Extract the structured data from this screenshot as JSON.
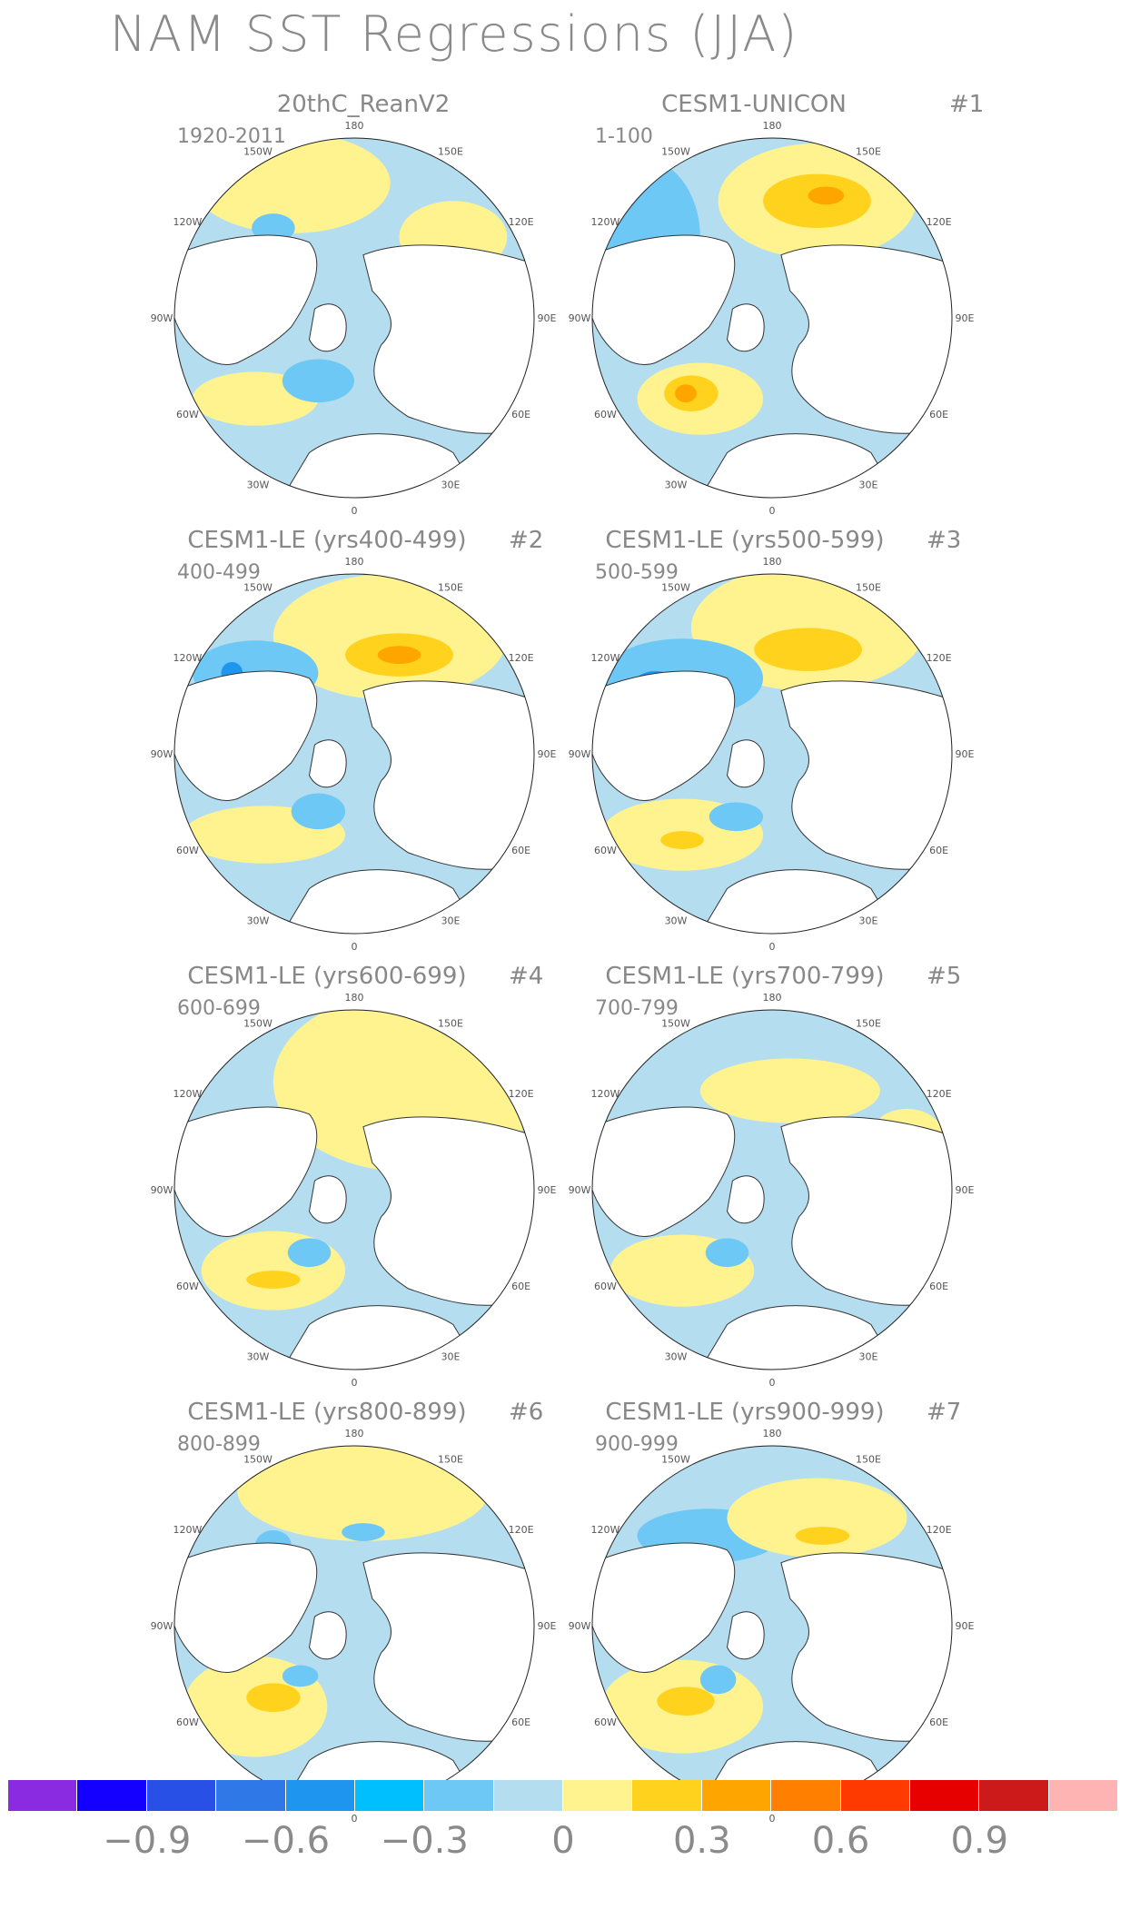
{
  "figure_title": "NAM SST Regressions (JJA)",
  "panels": [
    {
      "title": "20thC_ReanV2",
      "range": "1920-2011",
      "number": ""
    },
    {
      "title": "CESM1-UNICON",
      "range": "1-100",
      "number": "#1"
    },
    {
      "title": "CESM1-LE (yrs400-499)",
      "range": "400-499",
      "number": "#2"
    },
    {
      "title": "CESM1-LE (yrs500-599)",
      "range": "500-599",
      "number": "#3"
    },
    {
      "title": "CESM1-LE (yrs600-699)",
      "range": "600-699",
      "number": "#4"
    },
    {
      "title": "CESM1-LE (yrs700-799)",
      "range": "700-799",
      "number": "#5"
    },
    {
      "title": "CESM1-LE (yrs800-899)",
      "range": "800-899",
      "number": "#6"
    },
    {
      "title": "CESM1-LE (yrs900-999)",
      "range": "900-999",
      "number": "#7"
    }
  ],
  "longitude_labels": [
    "180",
    "150E",
    "120E",
    "90E",
    "60E",
    "30E",
    "0",
    "30W",
    "60W",
    "90W",
    "120W",
    "150W"
  ],
  "colorbar": {
    "colors": [
      "#8a2be2",
      "#1400ff",
      "#2850e6",
      "#2f78e8",
      "#1e96f0",
      "#00bfff",
      "#6ec8f5",
      "#b4ddf0",
      "#fff38f",
      "#ffd21e",
      "#ffa500",
      "#ff7f00",
      "#ff3a00",
      "#e60000",
      "#cc1a1a",
      "#ffb4b4"
    ],
    "labels": [
      "−0.9",
      "−0.6",
      "−0.3",
      "0",
      "0.3",
      "0.6",
      "0.9"
    ]
  }
}
